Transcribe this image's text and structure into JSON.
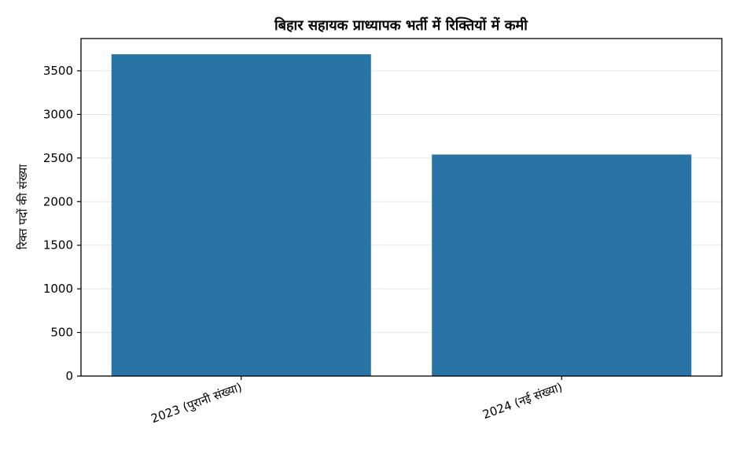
{
  "chart_data": {
    "type": "bar",
    "title": "बिहार सहायक प्राध्यापक भर्ती में रिक्तियों में कमी",
    "xlabel": "",
    "ylabel": "रिक्त पदों की संख्या",
    "categories": [
      "2023 (पुरानी संख्या)",
      "2024 (नई संख्या)"
    ],
    "values": [
      3690,
      2540
    ],
    "ylim": [
      0,
      3870
    ],
    "yticks": [
      0,
      500,
      1000,
      1500,
      2000,
      2500,
      3000,
      3500
    ],
    "grid": "horizontal",
    "legend": "none",
    "colors": {
      "bar": "#2874a6",
      "grid": "#e6e6e6",
      "axis": "#000000"
    }
  }
}
